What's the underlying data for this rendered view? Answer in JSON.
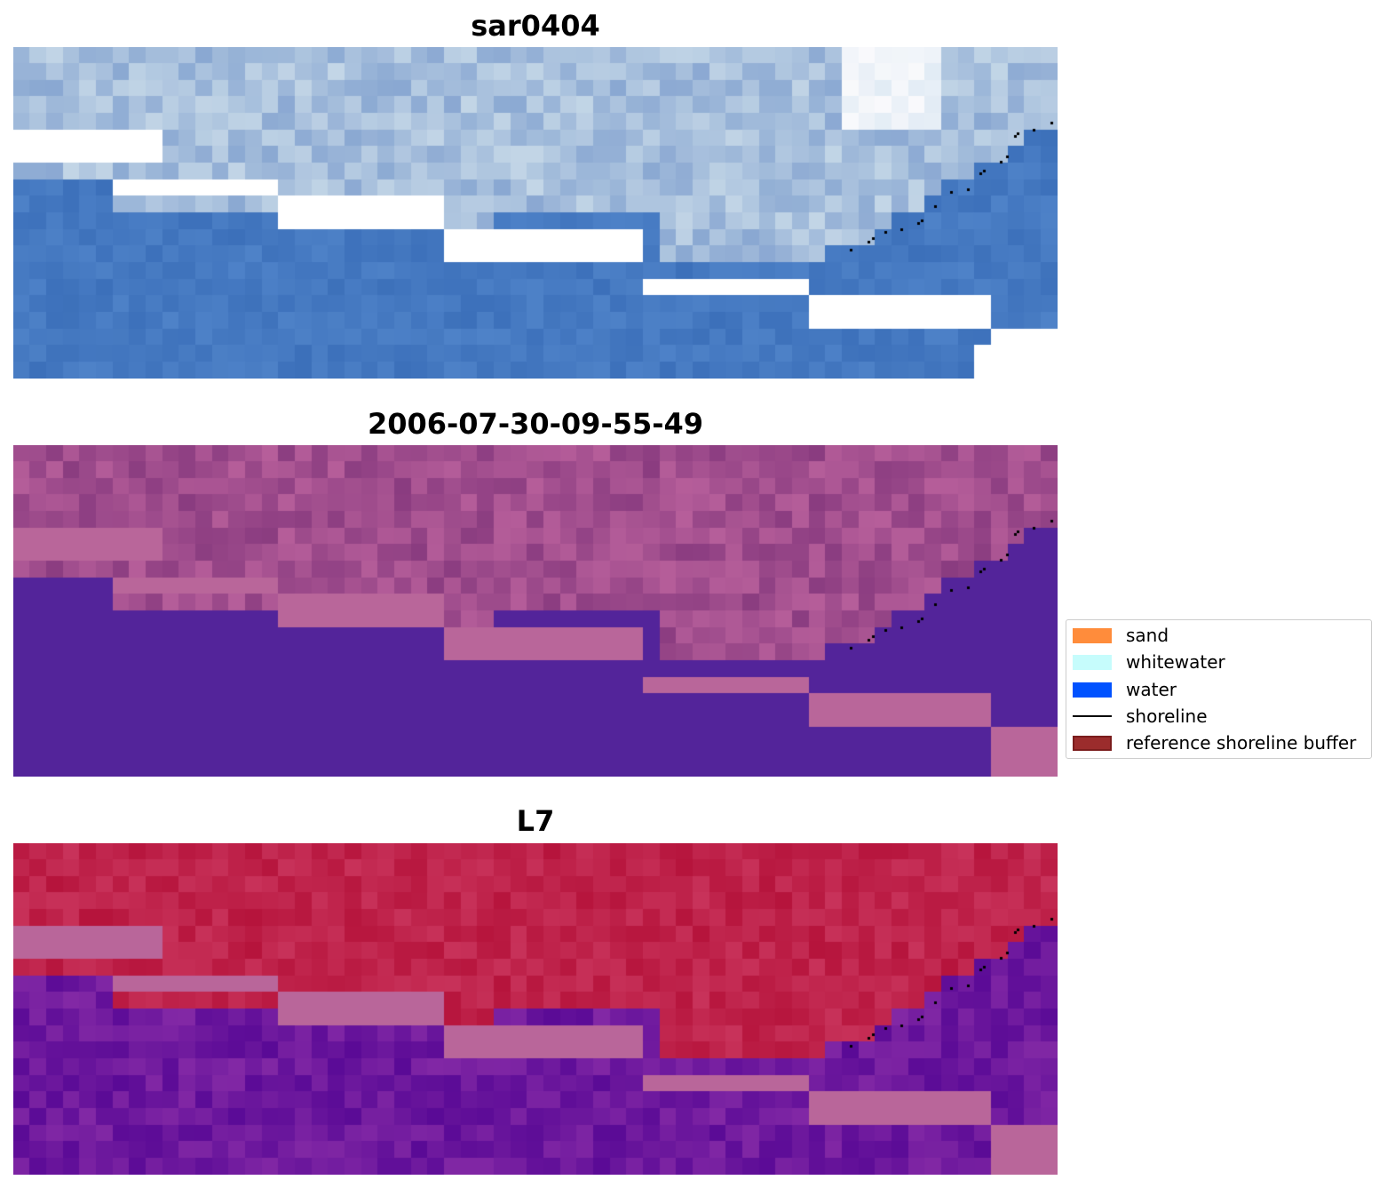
{
  "panels": [
    {
      "title": "sar0404",
      "style": "rgb"
    },
    {
      "title": "2006-07-30-09-55-49",
      "style": "classified"
    },
    {
      "title": "L7",
      "style": "index"
    }
  ],
  "legend": {
    "items": [
      {
        "label": "sand",
        "color": "#ff8c3b",
        "kind": "patch"
      },
      {
        "label": "whitewater",
        "color": "#c6fcfc",
        "kind": "patch"
      },
      {
        "label": "water",
        "color": "#0052ff",
        "kind": "patch"
      },
      {
        "label": "shoreline",
        "color": "#000000",
        "kind": "line"
      },
      {
        "label": "reference shoreline buffer",
        "color": "#9b2c2c",
        "kind": "patch",
        "edge": "#7a1c1c"
      }
    ]
  },
  "colors": {
    "buffer_overlay": "#b9669a",
    "water_class": "#53249a",
    "index_high": "#c0103a",
    "index_low": "#5e0a9e"
  }
}
